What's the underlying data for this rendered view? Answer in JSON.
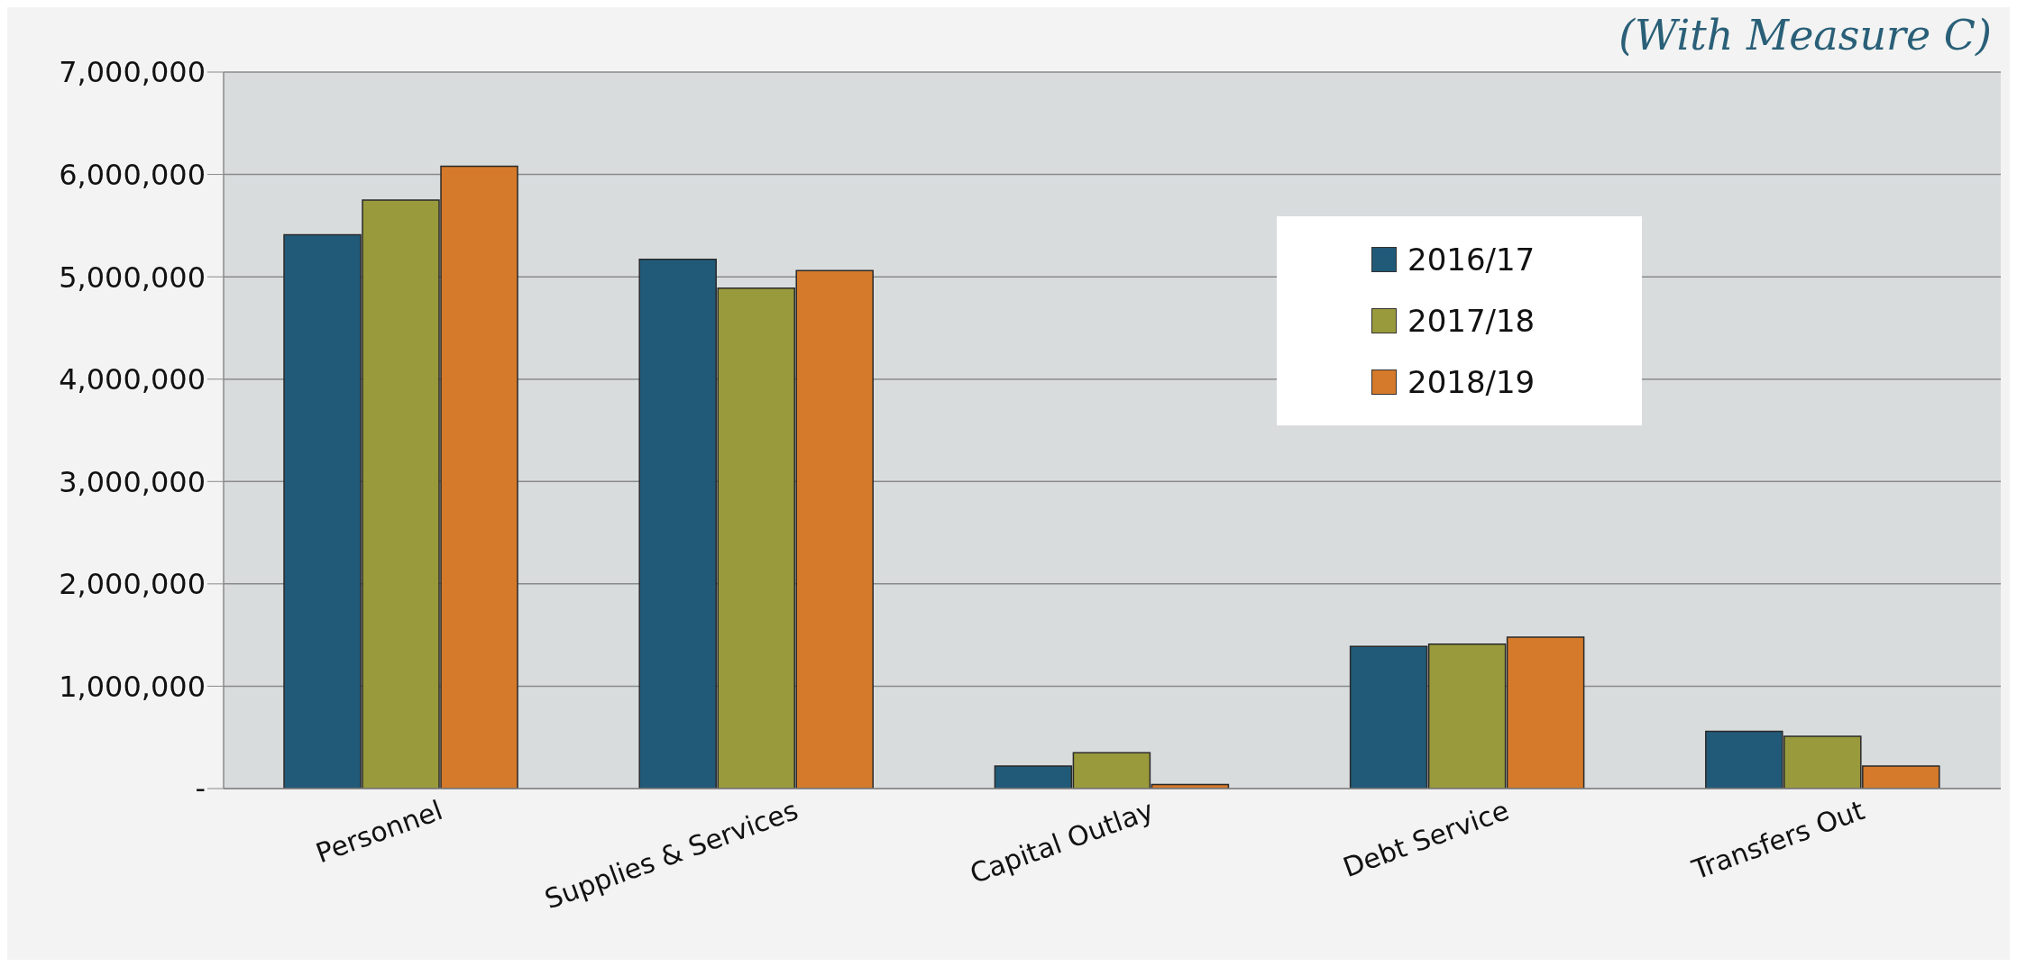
{
  "chart_data": {
    "type": "bar",
    "title": "(With Measure C)",
    "categories": [
      "Personnel",
      "Supplies & Services",
      "Capital Outlay",
      "Debt Service",
      "Transfers Out"
    ],
    "series": [
      {
        "name": "2016/17",
        "color": "#215a78",
        "values": [
          5410000,
          5170000,
          220000,
          1390000,
          560000
        ]
      },
      {
        "name": "2017/18",
        "color": "#999a3c",
        "values": [
          5750000,
          4890000,
          350000,
          1410000,
          510000
        ]
      },
      {
        "name": "2018/19",
        "color": "#d57a2a",
        "values": [
          6080000,
          5060000,
          40000,
          1480000,
          220000
        ]
      }
    ],
    "ylim": [
      0,
      7000000
    ],
    "yticks": [
      {
        "value": 0,
        "label": "-"
      },
      {
        "value": 1000000,
        "label": "1,000,000"
      },
      {
        "value": 2000000,
        "label": "2,000,000"
      },
      {
        "value": 3000000,
        "label": "3,000,000"
      },
      {
        "value": 4000000,
        "label": "4,000,000"
      },
      {
        "value": 5000000,
        "label": "5,000,000"
      },
      {
        "value": 6000000,
        "label": "6,000,000"
      },
      {
        "value": 7000000,
        "label": "7,000,000"
      }
    ],
    "grid": "y",
    "legend": "top right"
  }
}
